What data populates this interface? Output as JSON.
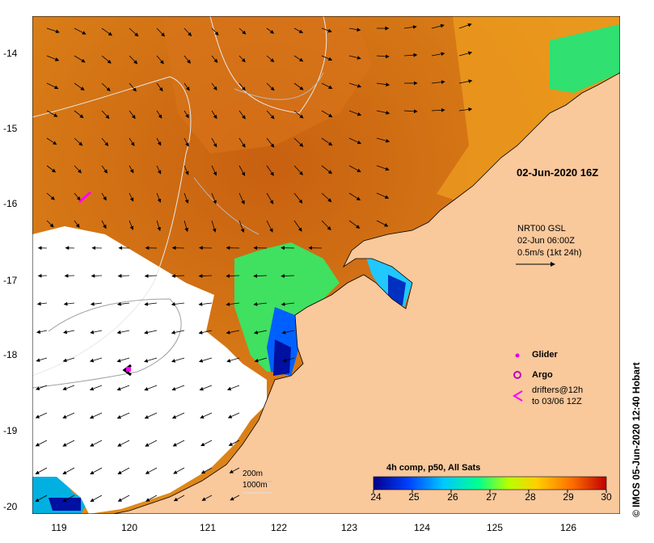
{
  "map": {
    "date_label": "02-Jun-2020 16Z",
    "current": {
      "line1": "NRT00 GSL",
      "line2": "02-Jun 06:00Z",
      "line3": "0.5m/s (1kt 24h)"
    },
    "legend": {
      "glider": "Glider",
      "argo": "Argo",
      "drifters_line1": "drifters@12h",
      "drifters_line2": "to 03/06 12Z",
      "glider_color": "#e000e0",
      "argo_color": "#c000c0",
      "drifter_color": "#ff00ff"
    },
    "isobaths": {
      "a": "200m",
      "b": "1000m"
    },
    "credit": "© IMOS 05-Jun-2020 12:40 Hobart",
    "lat_ticks": [
      "-14",
      "-15",
      "-16",
      "-17",
      "-18",
      "-19",
      "-20"
    ],
    "lon_ticks": [
      "119",
      "120",
      "121",
      "122",
      "123",
      "124",
      "125",
      "126"
    ],
    "colorbar": {
      "title": "4h comp, p50, All Sats",
      "ticks": [
        "24",
        "25",
        "26",
        "27",
        "28",
        "29",
        "30"
      ],
      "colors": [
        "#0000a0",
        "#0040ff",
        "#00c0ff",
        "#00ff80",
        "#c0ff00",
        "#ffc000",
        "#ff6000",
        "#c00000"
      ]
    },
    "colors": {
      "land": "#f9c89b",
      "warm_sst": "#cf6a10",
      "cloud": "#ffffff"
    }
  }
}
